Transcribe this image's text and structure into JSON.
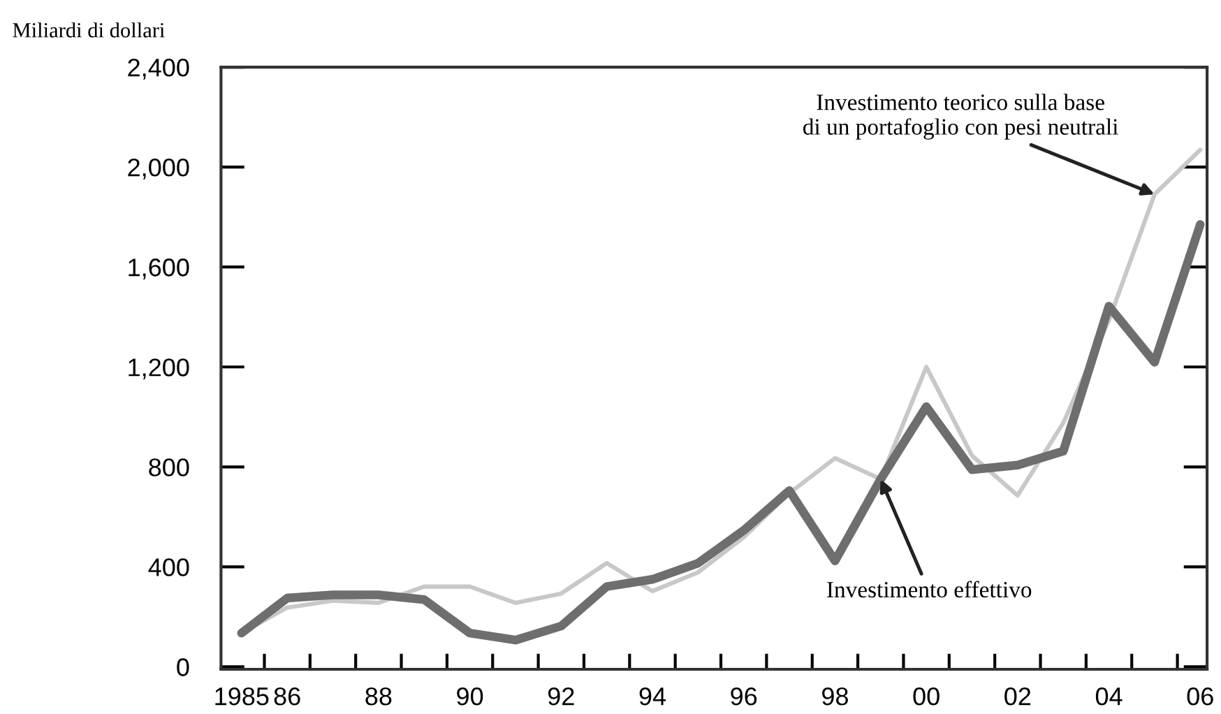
{
  "chart_data": {
    "type": "line",
    "ylabel": "Miliardi di dollari",
    "x": [
      1985,
      1986,
      1987,
      1988,
      1989,
      1990,
      1991,
      1992,
      1993,
      1994,
      1995,
      1996,
      1997,
      1998,
      1999,
      2000,
      2001,
      2002,
      2003,
      2004,
      2005,
      2006
    ],
    "series": [
      {
        "color": "#c8c8c8",
        "values": [
          135,
          237,
          265,
          256,
          321,
          321,
          256,
          293,
          415,
          303,
          378,
          518,
          695,
          835,
          751,
          1200,
          845,
          686,
          976,
          1387,
          1891,
          2069
        ]
      },
      {
        "color": "#6e6e6e",
        "values": [
          135,
          275,
          288,
          288,
          269,
          135,
          107,
          163,
          321,
          350,
          415,
          546,
          705,
          424,
          751,
          1041,
          789,
          807,
          863,
          1443,
          1219,
          1770
        ]
      }
    ],
    "xlim": [
      1984.55,
      2006.15
    ],
    "ylim": [
      -10,
      2400
    ],
    "xticks": [
      {
        "value": 1985,
        "label": "1985"
      },
      {
        "value": 1986,
        "label": "86"
      },
      {
        "value": 1988,
        "label": "88"
      },
      {
        "value": 1990,
        "label": "90"
      },
      {
        "value": 1992,
        "label": "92"
      },
      {
        "value": 1994,
        "label": "94"
      },
      {
        "value": 1996,
        "label": "96"
      },
      {
        "value": 1998,
        "label": "98"
      },
      {
        "value": 2000,
        "label": "00"
      },
      {
        "value": 2002,
        "label": "02"
      },
      {
        "value": 2004,
        "label": "04"
      },
      {
        "value": 2006,
        "label": "06"
      },
      {
        "value": 1985.5,
        "label": null
      },
      {
        "value": 1986.5,
        "label": null
      },
      {
        "value": 1987.5,
        "label": null
      },
      {
        "value": 1988.5,
        "label": null
      },
      {
        "value": 1989.5,
        "label": null
      },
      {
        "value": 1990.5,
        "label": null
      },
      {
        "value": 1991.5,
        "label": null
      },
      {
        "value": 1992.5,
        "label": null
      },
      {
        "value": 1993.5,
        "label": null
      },
      {
        "value": 1994.5,
        "label": null
      },
      {
        "value": 1995.5,
        "label": null
      },
      {
        "value": 1996.5,
        "label": null
      },
      {
        "value": 1997.5,
        "label": null
      },
      {
        "value": 1998.5,
        "label": null
      },
      {
        "value": 1999.5,
        "label": null
      },
      {
        "value": 2000.5,
        "label": null
      },
      {
        "value": 2001.5,
        "label": null
      },
      {
        "value": 2002.5,
        "label": null
      },
      {
        "value": 2003.5,
        "label": null
      },
      {
        "value": 2004.5,
        "label": null
      },
      {
        "value": 2005.5,
        "label": null
      }
    ],
    "yticks": [
      {
        "value": 0,
        "label": "0"
      },
      {
        "value": 400,
        "label": "400"
      },
      {
        "value": 800,
        "label": "800"
      },
      {
        "value": 1200,
        "label": "1,200"
      },
      {
        "value": 1600,
        "label": "1,600"
      },
      {
        "value": 2000,
        "label": "2,000"
      },
      {
        "value": 2400,
        "label": "2,400"
      }
    ],
    "annotations": [
      {
        "text": "Investimento teorico sulla base\ndi un portafoglio con pesi neutrali",
        "x": 2005,
        "y": 1891
      },
      {
        "text": "Investimento effettivo",
        "x": 1999,
        "y": 751
      }
    ],
    "grid": false,
    "legend": false,
    "marker": "none",
    "line_style": "solid"
  }
}
